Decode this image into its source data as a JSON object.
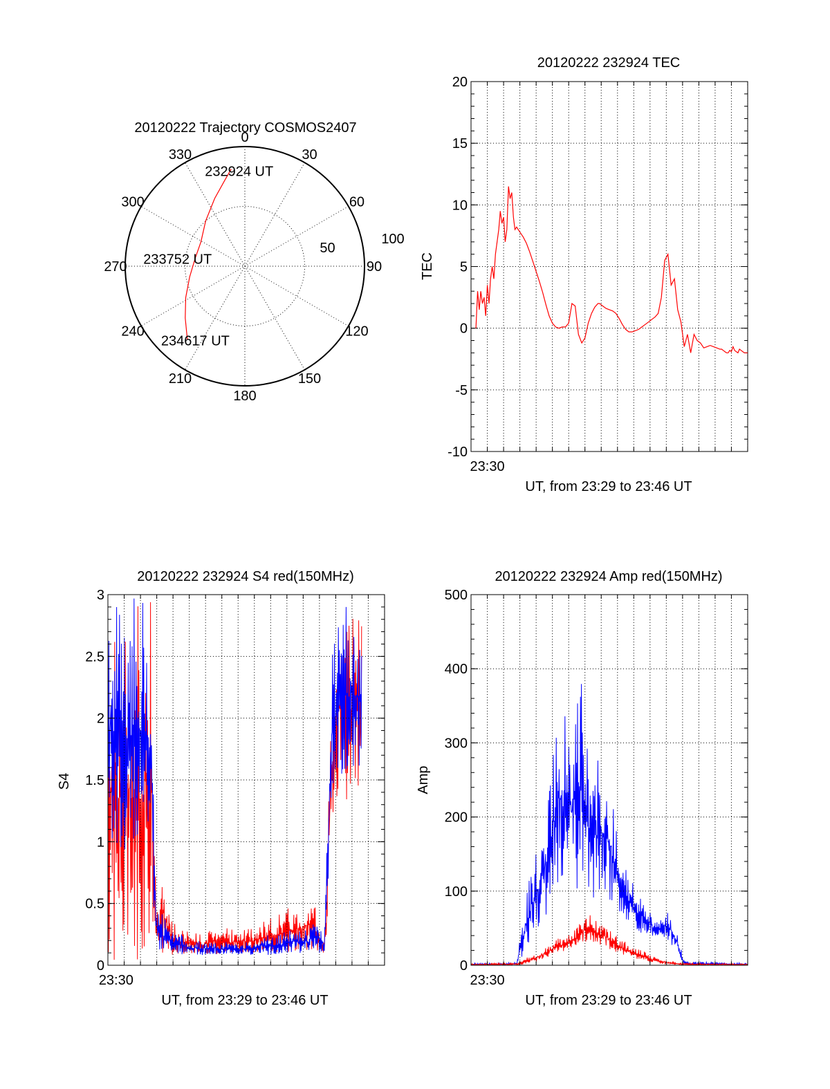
{
  "figure": {
    "background": "#ffffff"
  },
  "colors": {
    "red": "#ff0000",
    "blue": "#0000ff",
    "axis": "#000000"
  },
  "chart_data": [
    {
      "id": "trajectory",
      "type": "polar",
      "title": "20120222 Trajectory COSMOS2407",
      "angle_labels": [
        {
          "angle": 0,
          "text": "0"
        },
        {
          "angle": 30,
          "text": "30"
        },
        {
          "angle": 60,
          "text": "60"
        },
        {
          "angle": 90,
          "text": "90"
        },
        {
          "angle": 120,
          "text": "120"
        },
        {
          "angle": 150,
          "text": "150"
        },
        {
          "angle": 180,
          "text": "180"
        },
        {
          "angle": 210,
          "text": "210"
        },
        {
          "angle": 240,
          "text": "240"
        },
        {
          "angle": 270,
          "text": "270"
        },
        {
          "angle": 300,
          "text": "300"
        },
        {
          "angle": 330,
          "text": "330"
        }
      ],
      "radial_labels": [
        {
          "value": 50,
          "text": "50"
        },
        {
          "value": 100,
          "text": "100"
        }
      ],
      "rmax": 100,
      "track": {
        "color": "#ff0000",
        "points": [
          [
            352,
            82
          ],
          [
            347,
            74
          ],
          [
            336,
            62
          ],
          [
            319,
            50
          ],
          [
            299,
            42
          ],
          [
            279,
            42
          ],
          [
            259,
            47
          ],
          [
            242,
            56
          ],
          [
            229,
            66
          ],
          [
            218,
            78
          ]
        ]
      },
      "annotations": [
        {
          "text": "232924 UT",
          "angle": 352,
          "r": 82
        },
        {
          "text": "233752 UT",
          "angle": 279,
          "r": 42
        },
        {
          "text": "234617 UT",
          "angle": 218,
          "r": 78
        }
      ]
    },
    {
      "id": "tec",
      "type": "line",
      "title": "20120222 232924 TEC",
      "xlabel": "UT, from 23:29 to 23:46 UT",
      "ylabel": "TEC",
      "xlim": [
        23.4833,
        23.7667
      ],
      "ylim": [
        -10,
        20
      ],
      "yticks": [
        -10,
        -5,
        0,
        5,
        10,
        15,
        20
      ],
      "xticks": [
        {
          "value": 23.5,
          "label": "23:30"
        }
      ],
      "grid": true,
      "series": [
        {
          "color": "#ff0000",
          "x": [
            23.4883,
            23.49,
            23.4917,
            23.4933,
            23.495,
            23.4967,
            23.4983,
            23.5,
            23.5017,
            23.5033,
            23.505,
            23.5067,
            23.5083,
            23.51,
            23.5117,
            23.5133,
            23.515,
            23.5167,
            23.5183,
            23.52,
            23.5217,
            23.5233,
            23.525,
            23.5267,
            23.5283,
            23.53,
            23.5333,
            23.5367,
            23.54,
            23.5433,
            23.5467,
            23.55,
            23.5533,
            23.5567,
            23.56,
            23.5633,
            23.5667,
            23.57,
            23.5733,
            23.5767,
            23.58,
            23.5833,
            23.5867,
            23.59,
            23.5933,
            23.5967,
            23.6,
            23.6033,
            23.6067,
            23.61,
            23.6133,
            23.615,
            23.6167,
            23.6183,
            23.62,
            23.6217,
            23.625,
            23.6283,
            23.6317,
            23.635,
            23.6383,
            23.6417,
            23.645,
            23.6483,
            23.6517,
            23.655,
            23.6583,
            23.6617,
            23.665,
            23.6683,
            23.6717,
            23.675,
            23.6783,
            23.6817,
            23.685,
            23.6883,
            23.6917,
            23.695,
            23.6983,
            23.7017,
            23.705,
            23.7083,
            23.7117,
            23.715,
            23.7183,
            23.7217,
            23.725,
            23.7283,
            23.7317,
            23.735,
            23.7383,
            23.74,
            23.7417,
            23.7433,
            23.745,
            23.7467,
            23.7483,
            23.75,
            23.7517,
            23.7533,
            23.755,
            23.7567,
            23.7583,
            23.76,
            23.7617,
            23.7633,
            23.765,
            23.7667
          ],
          "y": [
            0.0,
            3.0,
            1.5,
            3.0,
            2.0,
            2.5,
            1.0,
            3.5,
            2.0,
            4.0,
            5.0,
            4.0,
            6.0,
            7.0,
            8.0,
            9.5,
            8.5,
            9.0,
            7.0,
            8.0,
            11.5,
            10.5,
            11.0,
            9.0,
            8.0,
            8.2,
            7.8,
            7.4,
            6.9,
            6.2,
            5.4,
            4.6,
            3.8,
            2.9,
            1.9,
            1.0,
            0.4,
            0.1,
            0.0,
            0.1,
            0.1,
            0.4,
            2.0,
            1.8,
            -0.5,
            -1.2,
            -0.8,
            0.4,
            1.2,
            1.7,
            2.0,
            2.0,
            1.9,
            1.8,
            1.7,
            1.6,
            1.5,
            1.4,
            1.2,
            0.8,
            0.3,
            -0.1,
            -0.3,
            -0.3,
            -0.2,
            -0.1,
            0.1,
            0.3,
            0.5,
            0.7,
            0.9,
            1.2,
            2.5,
            5.5,
            6.0,
            3.5,
            4.0,
            1.5,
            0.5,
            -1.5,
            -0.5,
            -2.0,
            -0.5,
            -1.0,
            -1.2,
            -1.6,
            -1.5,
            -1.4,
            -1.5,
            -1.6,
            -1.7,
            -1.7,
            -1.8,
            -1.9,
            -2.0,
            -2.0,
            -1.8,
            -1.9,
            -1.5,
            -1.8,
            -1.9,
            -2.0,
            -1.7,
            -1.8,
            -1.9,
            -2.0,
            -2.0,
            -2.0
          ]
        }
      ]
    },
    {
      "id": "s4",
      "type": "line",
      "title": "20120222 232924 S4 red(150MHz)",
      "xlabel": "UT, from 23:29 to 23:46 UT",
      "ylabel": "S4",
      "xlim": [
        23.4833,
        23.7667
      ],
      "ylim": [
        0,
        3
      ],
      "yticks": [
        {
          "value": 0,
          "label": "0"
        },
        {
          "value": 0.5,
          "label": "0.5"
        },
        {
          "value": 1,
          "label": "1"
        },
        {
          "value": 1.5,
          "label": "1.5"
        },
        {
          "value": 2,
          "label": "2"
        },
        {
          "value": 2.5,
          "label": "2.5"
        },
        {
          "value": 3,
          "label": "3"
        }
      ],
      "xticks": [
        {
          "value": 23.4917,
          "label": "23:30"
        }
      ],
      "grid": true,
      "series": [
        {
          "color": "#0000ff",
          "envelope": [
            [
              23.4833,
              1.0,
              3.0
            ],
            [
              23.495,
              0.8,
              3.0
            ],
            [
              23.5067,
              0.9,
              3.0
            ],
            [
              23.5183,
              1.0,
              3.0
            ],
            [
              23.5283,
              0.6,
              3.0
            ],
            [
              23.53,
              0.4,
              1.4
            ],
            [
              23.5333,
              0.15,
              0.5
            ],
            [
              23.54,
              0.1,
              0.4
            ],
            [
              23.55,
              0.08,
              0.3
            ],
            [
              23.56,
              0.08,
              0.25
            ],
            [
              23.57,
              0.09,
              0.2
            ],
            [
              23.58,
              0.08,
              0.2
            ],
            [
              23.59,
              0.09,
              0.2
            ],
            [
              23.6,
              0.09,
              0.18
            ],
            [
              23.61,
              0.08,
              0.2
            ],
            [
              23.62,
              0.09,
              0.18
            ],
            [
              23.63,
              0.08,
              0.2
            ],
            [
              23.64,
              0.09,
              0.25
            ],
            [
              23.65,
              0.08,
              0.25
            ],
            [
              23.66,
              0.09,
              0.25
            ],
            [
              23.67,
              0.1,
              0.3
            ],
            [
              23.68,
              0.1,
              0.3
            ],
            [
              23.69,
              0.1,
              0.3
            ],
            [
              23.695,
              0.1,
              0.4
            ],
            [
              23.7,
              0.1,
              0.35
            ],
            [
              23.705,
              0.1,
              0.2
            ],
            [
              23.7083,
              0.4,
              1.2
            ],
            [
              23.7117,
              1.2,
              2.5
            ],
            [
              23.72,
              1.5,
              3.0
            ],
            [
              23.735,
              1.5,
              3.0
            ],
            [
              23.7433,
              1.6,
              2.9
            ]
          ]
        },
        {
          "color": "#ff0000",
          "envelope": [
            [
              23.4833,
              0.0,
              3.0
            ],
            [
              23.495,
              0.0,
              3.0
            ],
            [
              23.5067,
              0.0,
              3.0
            ],
            [
              23.5183,
              0.0,
              3.0
            ],
            [
              23.5283,
              0.3,
              3.0
            ],
            [
              23.53,
              0.3,
              1.2
            ],
            [
              23.5333,
              0.12,
              0.45
            ],
            [
              23.54,
              0.1,
              0.8
            ],
            [
              23.55,
              0.08,
              0.35
            ],
            [
              23.56,
              0.09,
              0.3
            ],
            [
              23.57,
              0.09,
              0.3
            ],
            [
              23.58,
              0.09,
              0.25
            ],
            [
              23.59,
              0.09,
              0.3
            ],
            [
              23.6,
              0.09,
              0.4
            ],
            [
              23.61,
              0.08,
              0.3
            ],
            [
              23.62,
              0.1,
              0.3
            ],
            [
              23.63,
              0.1,
              0.3
            ],
            [
              23.64,
              0.1,
              0.35
            ],
            [
              23.65,
              0.1,
              0.4
            ],
            [
              23.66,
              0.1,
              0.45
            ],
            [
              23.67,
              0.1,
              0.5
            ],
            [
              23.68,
              0.12,
              0.5
            ],
            [
              23.69,
              0.12,
              0.6
            ],
            [
              23.695,
              0.12,
              0.5
            ],
            [
              23.7,
              0.1,
              0.3
            ],
            [
              23.705,
              0.1,
              0.2
            ],
            [
              23.7083,
              0.3,
              0.9
            ],
            [
              23.7117,
              1.0,
              2.2
            ],
            [
              23.72,
              1.3,
              3.0
            ],
            [
              23.735,
              1.3,
              3.0
            ],
            [
              23.7433,
              1.5,
              3.0
            ]
          ]
        }
      ]
    },
    {
      "id": "amp",
      "type": "line",
      "title": "20120222 232924 Amp red(150MHz)",
      "xlabel": "UT, from 23:29 to 23:46 UT",
      "ylabel": "Amp",
      "xlim": [
        23.4833,
        23.7667
      ],
      "ylim": [
        0,
        500
      ],
      "yticks": [
        0,
        100,
        200,
        300,
        400,
        500
      ],
      "xticks": [
        {
          "value": 23.5,
          "label": "23:30"
        }
      ],
      "grid": true,
      "series": [
        {
          "color": "#0000ff",
          "envelope": [
            [
              23.4833,
              0,
              3
            ],
            [
              23.52,
              0,
              3
            ],
            [
              23.53,
              0,
              5
            ],
            [
              23.5333,
              5,
              40
            ],
            [
              23.54,
              20,
              100
            ],
            [
              23.5467,
              40,
              140
            ],
            [
              23.5533,
              50,
              170
            ],
            [
              23.56,
              60,
              230
            ],
            [
              23.5667,
              90,
              260
            ],
            [
              23.5717,
              110,
              400
            ],
            [
              23.5767,
              120,
              320
            ],
            [
              23.5817,
              120,
              380
            ],
            [
              23.5867,
              110,
              320
            ],
            [
              23.5917,
              100,
              390
            ],
            [
              23.5967,
              120,
              400
            ],
            [
              23.6017,
              110,
              310
            ],
            [
              23.6067,
              90,
              240
            ],
            [
              23.6117,
              90,
              280
            ],
            [
              23.6183,
              100,
              270
            ],
            [
              23.625,
              90,
              250
            ],
            [
              23.63,
              70,
              220
            ],
            [
              23.6367,
              70,
              170
            ],
            [
              23.6417,
              60,
              140
            ],
            [
              23.6467,
              50,
              120
            ],
            [
              23.6533,
              45,
              100
            ],
            [
              23.6617,
              40,
              90
            ],
            [
              23.67,
              35,
              70
            ],
            [
              23.6767,
              40,
              60
            ],
            [
              23.6833,
              35,
              75
            ],
            [
              23.69,
              25,
              65
            ],
            [
              23.695,
              15,
              45
            ],
            [
              23.7,
              3,
              12
            ],
            [
              23.705,
              0,
              5
            ],
            [
              23.7667,
              0,
              3
            ]
          ]
        },
        {
          "color": "#ff0000",
          "envelope": [
            [
              23.4833,
              0,
              2
            ],
            [
              23.53,
              0,
              3
            ],
            [
              23.54,
              2,
              10
            ],
            [
              23.55,
              5,
              15
            ],
            [
              23.56,
              10,
              25
            ],
            [
              23.57,
              15,
              35
            ],
            [
              23.58,
              20,
              40
            ],
            [
              23.59,
              25,
              50
            ],
            [
              23.5967,
              30,
              60
            ],
            [
              23.6033,
              30,
              80
            ],
            [
              23.61,
              30,
              65
            ],
            [
              23.62,
              25,
              55
            ],
            [
              23.6283,
              20,
              45
            ],
            [
              23.6367,
              15,
              35
            ],
            [
              23.645,
              10,
              30
            ],
            [
              23.6533,
              8,
              25
            ],
            [
              23.6617,
              5,
              20
            ],
            [
              23.67,
              3,
              12
            ],
            [
              23.68,
              2,
              8
            ],
            [
              23.69,
              1,
              5
            ],
            [
              23.7,
              0,
              3
            ],
            [
              23.7667,
              0,
              2
            ]
          ]
        }
      ]
    }
  ]
}
